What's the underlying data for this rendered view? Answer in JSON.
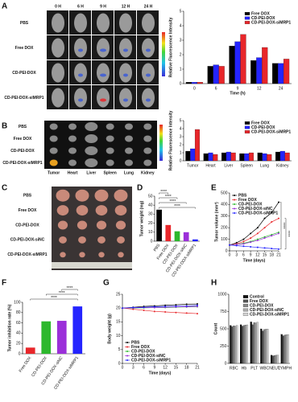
{
  "images": [
    {
      "panel": "A",
      "columns": [
        "0 H",
        "6 H",
        "9 H",
        "12 H",
        "24 H"
      ],
      "rows": [
        "PBS",
        "Free DOX",
        "CD-PEI-DOX",
        "CD-PEI-DOX-siMRP1"
      ]
    },
    {
      "panel": "B",
      "rows": [
        "PBS",
        "Free DOX",
        "CD-PEI-DOX",
        "CD-PEI-DOX-siMRP1"
      ],
      "columns": [
        "Tumor",
        "Heart",
        "Liver",
        "Spleen",
        "Lung",
        "Kidney"
      ]
    },
    {
      "panel": "C",
      "rows": [
        "PBS",
        "Free DOX",
        "CD-PEI-DOX",
        "CD-PEI-DOX-siNC",
        "CD-PEI-DOX-siMRP1"
      ]
    }
  ],
  "chart_data": [
    {
      "type": "bar",
      "xlabel": "Time (h)",
      "ylabel": "Relative Fluorescence Intensity",
      "categories": [
        "0",
        "6",
        "9",
        "12",
        "24"
      ],
      "ylim": [
        0,
        5
      ],
      "yticks": [
        0,
        1,
        2,
        3,
        4,
        5
      ],
      "legend": "upper right",
      "series": [
        {
          "name": "Free DOX",
          "color": "#000000",
          "values": [
            0.1,
            1.2,
            2.6,
            1.6,
            1.4
          ]
        },
        {
          "name": "CD-PEI-DOX",
          "color": "#2424ff",
          "values": [
            0.1,
            1.3,
            2.9,
            1.8,
            1.4
          ]
        },
        {
          "name": "CD-PEI-DOX-siMRP1",
          "color": "#e8262a",
          "values": [
            0.1,
            1.2,
            3.4,
            2.5,
            1.7
          ]
        }
      ]
    },
    {
      "type": "bar",
      "ylabel": "Relative Fluorescence Intensity",
      "categories": [
        "Tumor",
        "Heart",
        "Liver",
        "Spleen",
        "Lung",
        "Kidney"
      ],
      "ylim": [
        0,
        5
      ],
      "yticks": [
        0,
        1,
        2,
        3,
        4,
        5
      ],
      "legend": "upper right",
      "series": [
        {
          "name": "Free DOX",
          "color": "#000000",
          "values": [
            1.2,
            0.9,
            1.0,
            0.9,
            1.0,
            1.1
          ]
        },
        {
          "name": "CD-PEI-DOX",
          "color": "#2424ff",
          "values": [
            1.5,
            1.0,
            1.1,
            0.9,
            0.9,
            1.2
          ]
        },
        {
          "name": "CD-PEI-DOX-siMRP1",
          "color": "#e8262a",
          "values": [
            3.9,
            0.8,
            1.0,
            1.0,
            0.8,
            1.0
          ]
        }
      ]
    },
    {
      "type": "bar",
      "panel": "D",
      "ylabel": "Tumor weight (mg)",
      "categories": [
        "PBS",
        "Free DOX",
        "CD-PEI-DOX",
        "CD-PEI-DOX-siNC",
        "CD-PEI-DOX-siMRP1"
      ],
      "values": [
        35,
        18,
        11,
        10,
        2
      ],
      "colors": [
        "#000000",
        "#e8262a",
        "#2db82d",
        "#9b30d9",
        "#2424ff"
      ],
      "ylim": [
        0,
        50
      ],
      "yticks": [
        0,
        10,
        20,
        30,
        40,
        50
      ],
      "annotations": [
        "****",
        "****",
        "****",
        "****"
      ]
    },
    {
      "type": "line",
      "panel": "E",
      "xlabel": "Time (days)",
      "ylabel": "Tumor volume (mm³)",
      "x": [
        0,
        3,
        6,
        9,
        12,
        15,
        18,
        21
      ],
      "xlim": [
        0,
        21
      ],
      "xticks": [
        0,
        3,
        6,
        9,
        12,
        15,
        18,
        21
      ],
      "ylim": [
        0,
        500
      ],
      "yticks": [
        0,
        100,
        200,
        300,
        400,
        500
      ],
      "legend": "upper left",
      "annotations": [
        "****",
        "****"
      ],
      "series": [
        {
          "name": "PBS",
          "color": "#000000",
          "values": [
            50,
            70,
            100,
            150,
            200,
            280,
            330,
            420
          ]
        },
        {
          "name": "Free DOX",
          "color": "#e8262a",
          "values": [
            50,
            60,
            80,
            110,
            150,
            200,
            250,
            280
          ]
        },
        {
          "name": "CD-PEI-DOX",
          "color": "#2db82d",
          "values": [
            50,
            55,
            65,
            80,
            100,
            120,
            140,
            160
          ]
        },
        {
          "name": "CD-PEI-DOX-siNC",
          "color": "#9b30d9",
          "values": [
            50,
            55,
            60,
            75,
            90,
            110,
            130,
            150
          ]
        },
        {
          "name": "CD-PEI-DOX-siMRP1",
          "color": "#2424ff",
          "values": [
            50,
            45,
            40,
            35,
            30,
            25,
            20,
            15
          ]
        }
      ]
    },
    {
      "type": "bar",
      "panel": "F",
      "ylabel": "Tumor inhibition rate (%)",
      "categories": [
        "Free DOX",
        "CD-PEI-DOX",
        "CD-PEI-DOX-siNC",
        "CD-PEI-DOX-siMRP1"
      ],
      "values": [
        12,
        63,
        64,
        92
      ],
      "colors": [
        "#e8262a",
        "#2db82d",
        "#9b30d9",
        "#2424ff"
      ],
      "ylim": [
        0,
        100
      ],
      "yticks": [
        0,
        20,
        40,
        60,
        80,
        100
      ],
      "annotations": [
        "****",
        "****",
        "****"
      ]
    },
    {
      "type": "line",
      "panel": "G",
      "xlabel": "Time (days)",
      "ylabel": "Body weight (g)",
      "x": [
        0,
        3,
        6,
        9,
        12,
        15,
        18,
        21
      ],
      "xlim": [
        0,
        21
      ],
      "xticks": [
        0,
        3,
        6,
        9,
        12,
        15,
        18,
        21
      ],
      "ylim": [
        0,
        25
      ],
      "yticks": [
        0,
        5,
        10,
        15,
        20,
        25
      ],
      "legend": "lower left",
      "series": [
        {
          "name": "PBS",
          "color": "#000000",
          "values": [
            20,
            20.3,
            20.6,
            20.8,
            21,
            21.2,
            21.4,
            21.5
          ]
        },
        {
          "name": "Free DOX",
          "color": "#e8262a",
          "values": [
            20,
            19.6,
            19.2,
            18.8,
            18.6,
            18.4,
            18.2,
            18
          ]
        },
        {
          "name": "CD-PEI-DOX",
          "color": "#2db82d",
          "values": [
            20,
            20,
            20.1,
            20.2,
            20.2,
            20.3,
            20.4,
            20.5
          ]
        },
        {
          "name": "CD-PEI-DOX-siNC",
          "color": "#9b30d9",
          "values": [
            20,
            20.1,
            20.2,
            20.2,
            20.3,
            20.4,
            20.5,
            20.6
          ]
        },
        {
          "name": "CD-PEI-DOX-siMRP1",
          "color": "#2424ff",
          "values": [
            20,
            20.2,
            20.3,
            20.5,
            20.6,
            20.7,
            20.8,
            21
          ]
        }
      ]
    },
    {
      "type": "bar",
      "panel": "H",
      "ylabel": "Count",
      "categories": [
        "RBC",
        "Hb",
        "PLT",
        "WBC",
        "NEUT",
        "LYMPH"
      ],
      "ylim": [
        0,
        1000
      ],
      "yticks": [
        0,
        250,
        500,
        750,
        1000
      ],
      "legend": "upper right",
      "series": [
        {
          "name": "Control",
          "color": "#111111",
          "values": [
            550,
            560,
            600,
            500,
            120,
            420
          ]
        },
        {
          "name": "Free DOX",
          "color": "#555555",
          "values": [
            530,
            540,
            560,
            470,
            110,
            400
          ]
        },
        {
          "name": "CD-PEI-DOX",
          "color": "#888888",
          "values": [
            545,
            550,
            590,
            490,
            115,
            410
          ]
        },
        {
          "name": "CD-PEI-DOX-siNC",
          "color": "#aaaaaa",
          "values": [
            540,
            555,
            585,
            495,
            118,
            415
          ]
        },
        {
          "name": "CD-PEI-DOX-siMRP1",
          "color": "#d4d4d4",
          "values": [
            548,
            558,
            595,
            498,
            119,
            418
          ]
        }
      ]
    }
  ]
}
